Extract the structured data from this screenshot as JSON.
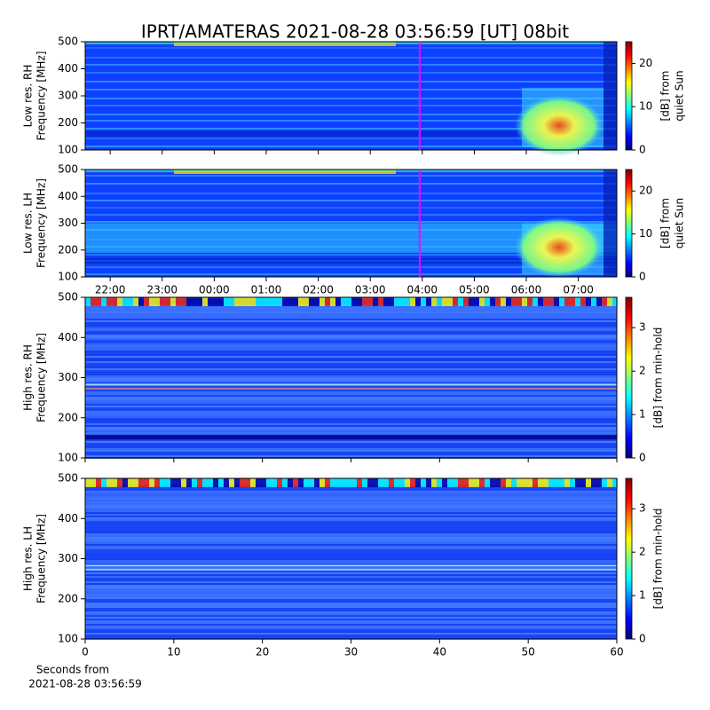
{
  "title": "IPRT/AMATERAS 2021-08-28 03:56:59 [UT]   08bit",
  "chart_data": [
    {
      "type": "heatmap",
      "ylabel": [
        "Low res. RH",
        "Frequency [MHz]"
      ],
      "xlim": [
        21.52,
        31.74
      ],
      "ylim": [
        100,
        500
      ],
      "yticks": [
        100,
        200,
        300,
        400,
        500
      ],
      "marker": 27.95,
      "colorbar": {
        "label": [
          "[dB] from",
          "quiet Sun"
        ],
        "lim": [
          0,
          25
        ],
        "ticks": [
          0,
          10,
          20
        ]
      }
    },
    {
      "type": "heatmap",
      "ylabel": [
        "Low res. LH",
        "Frequency [MHz]"
      ],
      "xlim": [
        21.52,
        31.74
      ],
      "ylim": [
        100,
        500
      ],
      "yticks": [
        100,
        200,
        300,
        400,
        500
      ],
      "marker": 27.95,
      "xticks": [
        {
          "value": 22,
          "label": "22:00"
        },
        {
          "value": 23,
          "label": "23:00"
        },
        {
          "value": 24,
          "label": "00:00"
        },
        {
          "value": 25,
          "label": "01:00"
        },
        {
          "value": 26,
          "label": "02:00"
        },
        {
          "value": 27,
          "label": "03:00"
        },
        {
          "value": 28,
          "label": "04:00"
        },
        {
          "value": 29,
          "label": "05:00"
        },
        {
          "value": 30,
          "label": "06:00"
        },
        {
          "value": 31,
          "label": "07:00"
        }
      ],
      "colorbar": {
        "label": [
          "[dB] from",
          "quiet Sun"
        ],
        "lim": [
          0,
          25
        ],
        "ticks": [
          0,
          10,
          20
        ]
      }
    },
    {
      "type": "heatmap",
      "ylabel": [
        "High res. RH",
        "Frequency [MHz]"
      ],
      "xlim": [
        0,
        60
      ],
      "ylim": [
        100,
        500
      ],
      "yticks": [
        100,
        200,
        300,
        400,
        500
      ],
      "colorbar": {
        "label": [
          "[dB] from min-hold"
        ],
        "lim": [
          0,
          3.7
        ],
        "ticks": [
          0,
          1,
          2,
          3
        ]
      }
    },
    {
      "type": "heatmap",
      "ylabel": [
        "High res. LH",
        "Frequency [MHz]"
      ],
      "xlabel": [
        "Seconds from",
        "2021-08-28 03:56:59"
      ],
      "xlim": [
        0,
        60
      ],
      "ylim": [
        100,
        500
      ],
      "yticks": [
        100,
        200,
        300,
        400,
        500
      ],
      "xticks": [
        0,
        10,
        20,
        30,
        40,
        50,
        60
      ],
      "colorbar": {
        "label": [
          "[dB] from min-hold"
        ],
        "lim": [
          0,
          3.7
        ],
        "ticks": [
          0,
          1,
          2,
          3
        ]
      }
    }
  ]
}
